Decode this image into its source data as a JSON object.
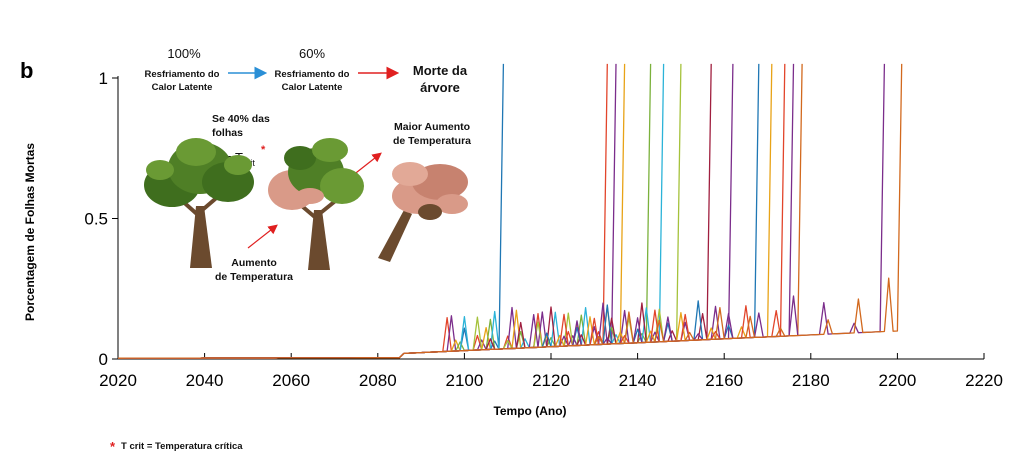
{
  "panel_label": "b",
  "annotations": {
    "pct_100": "100%",
    "pct_60": "60%",
    "resfriamento_1_line1": "Resfriamento do",
    "resfriamento_1_line2": "Calor Latente",
    "resfriamento_2_line1": "Resfriamento do",
    "resfriamento_2_line2": "Calor Latente",
    "morte_line1": "Morte da",
    "morte_line2": "árvore",
    "se40_line1": "Se 40% das",
    "se40_line2": "folhas",
    "tcrit_eq": "= T",
    "tcrit_sub": "crit",
    "tcrit_star": "*",
    "maior_line1": "Maior Aumento",
    "maior_line2": "de Temperatura",
    "aumento_line1": "Aumento",
    "aumento_line2": "de Temperatura",
    "footnote_star": "*",
    "footnote_text": "T crit = Temperatura crítica"
  },
  "colors": {
    "arrow_blue": "#2a8fd6",
    "arrow_red": "#e02020",
    "tree_green_dark": "#3f6e1e",
    "tree_green_light": "#6a9a34",
    "tree_pink": "#d99a88",
    "trunk": "#6b4a2e"
  },
  "chart_data": {
    "type": "line",
    "xlabel": "Tempo (Ano)",
    "ylabel": "Porcentagem de Folhas Mortas",
    "xlim": [
      2020,
      2220
    ],
    "ylim": [
      0,
      1
    ],
    "x_ticks": [
      2020,
      2040,
      2060,
      2080,
      2100,
      2120,
      2140,
      2160,
      2180,
      2200,
      2220
    ],
    "x_tick_labels": [
      "2020",
      "2040",
      "2060",
      "2080",
      "2100",
      "2120",
      "2140",
      "2160",
      "2180",
      "2200",
      "2220"
    ],
    "y_ticks": [
      0,
      0.5,
      1
    ],
    "y_tick_labels": [
      "0",
      "0.5",
      "1"
    ],
    "baseline_rise_start": 2086,
    "series": [
      {
        "color": "#1f77b4",
        "death_year": 2109,
        "oscillation_start": 2100,
        "osc_amp": 0.08
      },
      {
        "color": "#e2452b",
        "death_year": 2133,
        "oscillation_start": 2090,
        "osc_amp": 0.12
      },
      {
        "color": "#7b2d8b",
        "death_year": 2135,
        "oscillation_start": 2092,
        "osc_amp": 0.17
      },
      {
        "color": "#e8a317",
        "death_year": 2137,
        "oscillation_start": 2094,
        "osc_amp": 0.14
      },
      {
        "color": "#7bb13c",
        "death_year": 2143,
        "oscillation_start": 2096,
        "osc_amp": 0.11
      },
      {
        "color": "#2bb3d8",
        "death_year": 2146,
        "oscillation_start": 2098,
        "osc_amp": 0.16
      },
      {
        "color": "#a5c23b",
        "death_year": 2150,
        "oscillation_start": 2102,
        "osc_amp": 0.13
      },
      {
        "color": "#a01f3f",
        "death_year": 2157,
        "oscillation_start": 2106,
        "osc_amp": 0.15
      },
      {
        "color": "#7b2d8b",
        "death_year": 2162,
        "oscillation_start": 2110,
        "osc_amp": 0.12
      },
      {
        "color": "#1f77b4",
        "death_year": 2168,
        "oscillation_start": 2114,
        "osc_amp": 0.14
      },
      {
        "color": "#e8a317",
        "death_year": 2171,
        "oscillation_start": 2118,
        "osc_amp": 0.1
      },
      {
        "color": "#e2452b",
        "death_year": 2174,
        "oscillation_start": 2120,
        "osc_amp": 0.13
      },
      {
        "color": "#7b2d8b",
        "death_year": 2176,
        "oscillation_start": 2124,
        "osc_amp": 0.11
      },
      {
        "color": "#d2691e",
        "death_year": 2178,
        "oscillation_start": 2130,
        "osc_amp": 0.12
      },
      {
        "color": "#7b2d8b",
        "death_year": 2197,
        "oscillation_start": 2176,
        "osc_amp": 0.16
      },
      {
        "color": "#d2691e",
        "death_year": 2201,
        "oscillation_start": 2178,
        "osc_amp": 0.2
      }
    ]
  }
}
